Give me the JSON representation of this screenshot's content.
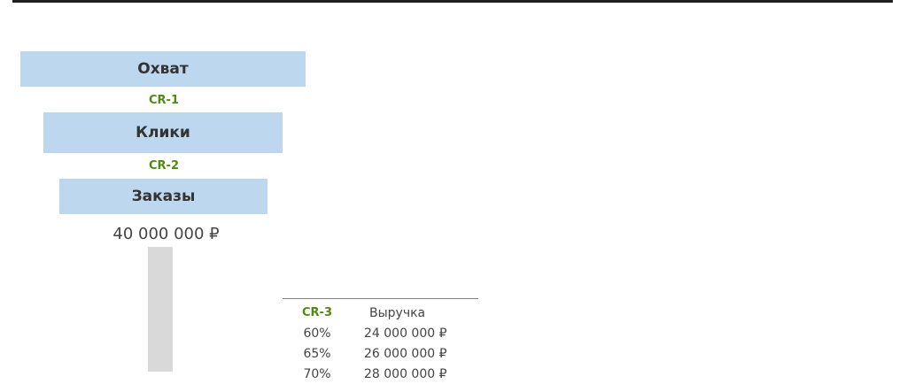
{
  "funnel": {
    "stages": [
      {
        "label": "Охват"
      },
      {
        "label": "Клики"
      },
      {
        "label": "Заказы"
      }
    ],
    "conversions": [
      "CR-1",
      "CR-2"
    ],
    "orders_amount": "40 000 000 ₽"
  },
  "table": {
    "header": {
      "cr": "CR-3",
      "revenue": "Выручка"
    },
    "rows": [
      {
        "cr": "60%",
        "revenue": "24 000 000 ₽"
      },
      {
        "cr": "65%",
        "revenue": "26 000 000 ₽"
      },
      {
        "cr": "70%",
        "revenue": "28 000 000 ₽"
      }
    ]
  },
  "colors": {
    "stage_fill": "#bdd7ee",
    "cr_green": "#4f8a10",
    "bar_grey": "#d9d9d9"
  }
}
